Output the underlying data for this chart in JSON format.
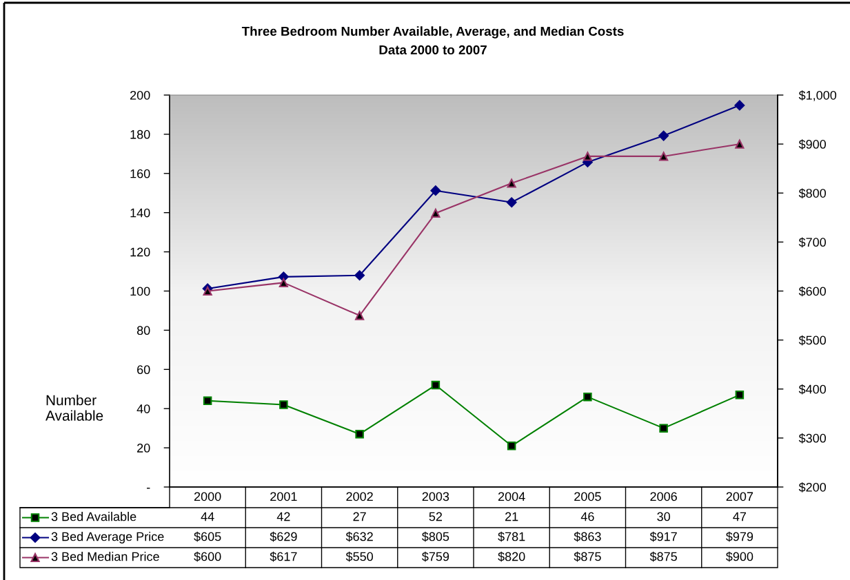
{
  "chart_data": {
    "type": "line",
    "title": "Three Bedroom Number Available, Average, and Median Costs",
    "subtitle": "Data 2000 to 2007",
    "ylabel": "Number Available",
    "categories": [
      "2000",
      "2001",
      "2002",
      "2003",
      "2004",
      "2005",
      "2006",
      "2007"
    ],
    "series": [
      {
        "name": "3 Bed Available",
        "color": "#008000",
        "marker": "square",
        "values": [
          44,
          42,
          27,
          52,
          21,
          46,
          30,
          47
        ],
        "value_labels": [
          "44",
          "42",
          "27",
          "52",
          "21",
          "46",
          "30",
          "47"
        ]
      },
      {
        "name": "3 Bed Average Price",
        "color": "#000080",
        "marker": "diamond",
        "axis": "y2",
        "values": [
          605,
          629,
          632,
          805,
          781,
          863,
          917,
          979
        ],
        "value_labels": [
          "$605",
          "$629",
          "$632",
          "$805",
          "$781",
          "$863",
          "$917",
          "$979"
        ]
      },
      {
        "name": "3 Bed Median Price",
        "color": "#993366",
        "marker": "triangle",
        "axis": "y2",
        "values": [
          600,
          617,
          550,
          759,
          820,
          875,
          875,
          900
        ],
        "value_labels": [
          "$600",
          "$617",
          "$550",
          "$759",
          "$820",
          "$875",
          "$875",
          "$900"
        ]
      }
    ],
    "ylim": [
      0,
      200
    ],
    "yticks": [
      {
        "value": 0,
        "label": "-"
      },
      20,
      40,
      60,
      80,
      100,
      120,
      140,
      160,
      180,
      200
    ],
    "y2lim": [
      200,
      1000
    ],
    "y2ticks": [
      {
        "value": 200,
        "label": "$200"
      },
      {
        "value": 300,
        "label": "$300"
      },
      {
        "value": 400,
        "label": "$400"
      },
      {
        "value": 500,
        "label": "$500"
      },
      {
        "value": 600,
        "label": "$600"
      },
      {
        "value": 700,
        "label": "$700"
      },
      {
        "value": 800,
        "label": "$800"
      },
      {
        "value": 900,
        "label": "$900"
      },
      {
        "value": 1000,
        "label": "$1,000"
      }
    ],
    "grid": false,
    "legend": "bottom",
    "line_style": "solid"
  }
}
